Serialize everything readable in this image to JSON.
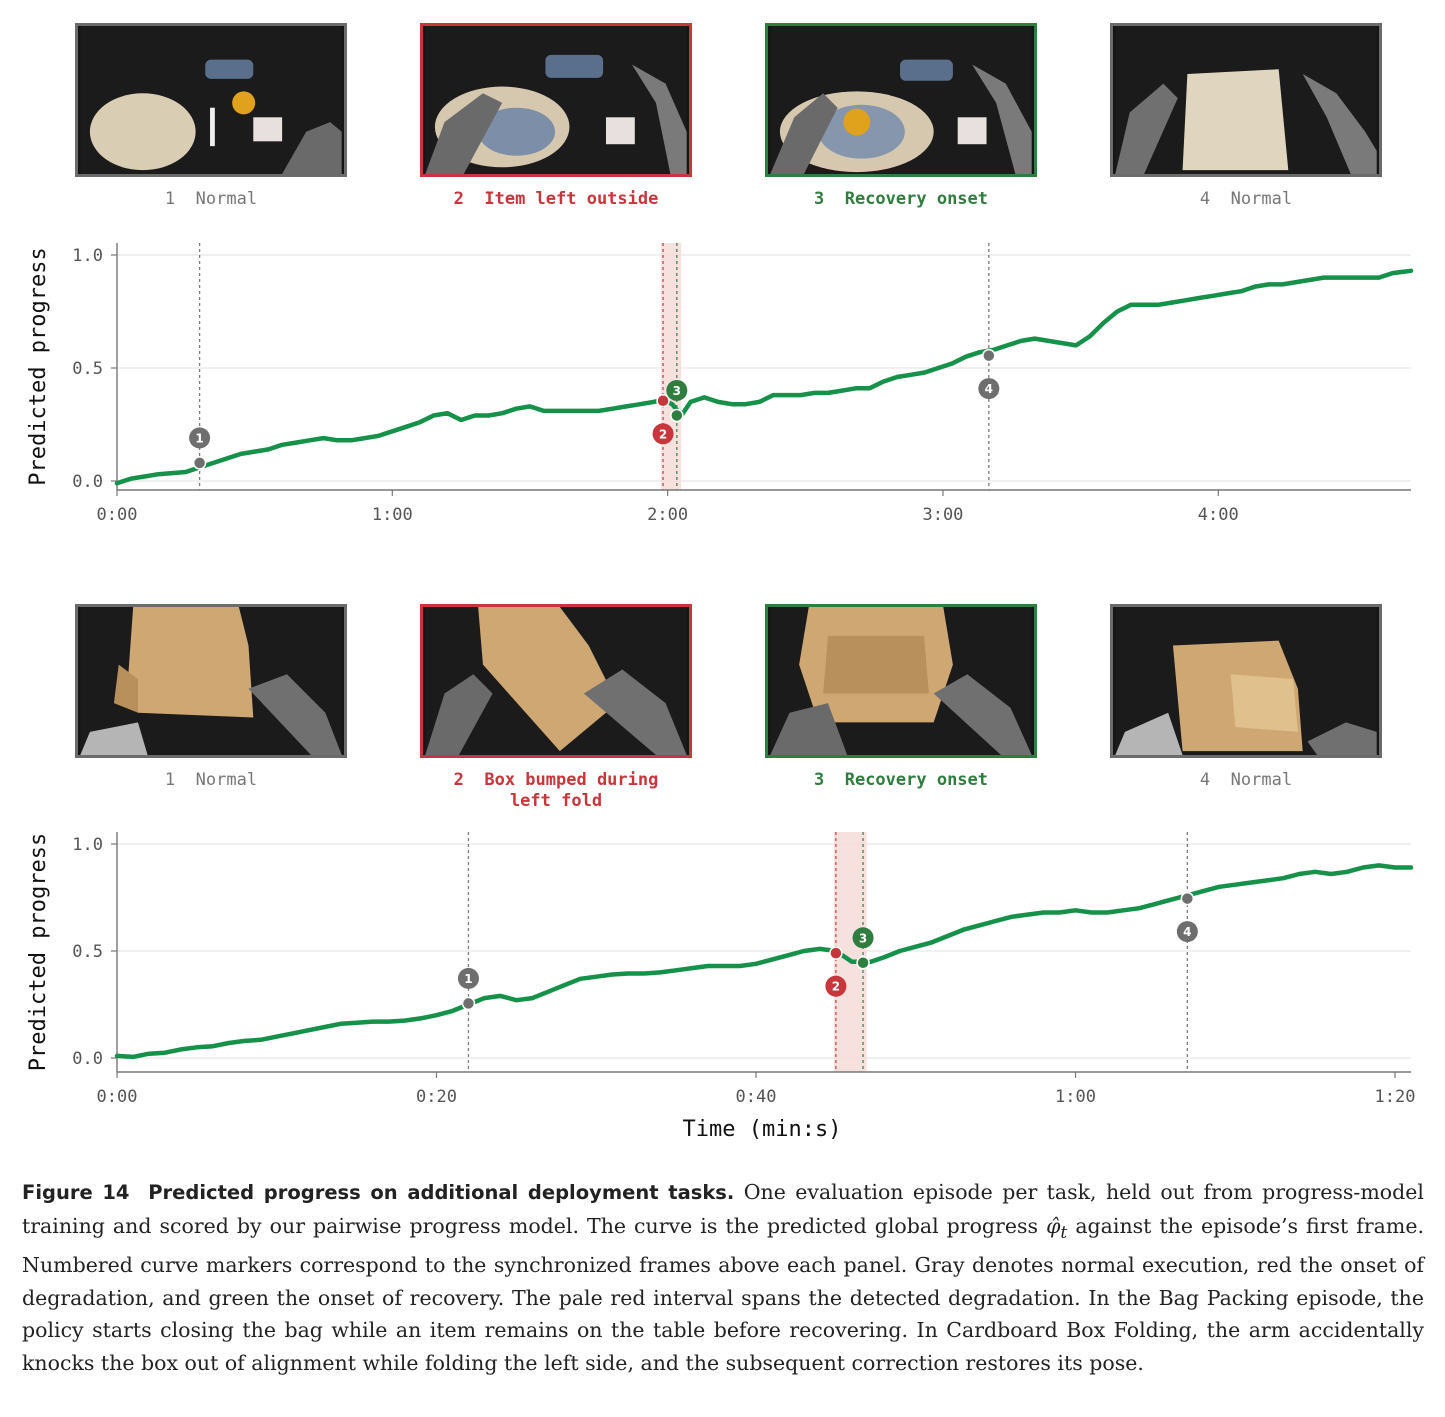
{
  "panels": [
    {
      "task": "Bag Packing",
      "frames": [
        {
          "num": "1",
          "label": "Normal",
          "kind": "normal"
        },
        {
          "num": "2",
          "label": "Item left outside",
          "kind": "degradation"
        },
        {
          "num": "3",
          "label": "Recovery onset",
          "kind": "recovery"
        },
        {
          "num": "4",
          "label": "Normal",
          "kind": "normal"
        }
      ]
    },
    {
      "task": "Cardboard Box Folding",
      "frames": [
        {
          "num": "1",
          "label": "Normal",
          "kind": "normal"
        },
        {
          "num": "2",
          "label": "Box bumped during\nleft fold",
          "kind": "degradation"
        },
        {
          "num": "3",
          "label": "Recovery onset",
          "kind": "recovery"
        },
        {
          "num": "4",
          "label": "Normal",
          "kind": "normal"
        }
      ]
    }
  ],
  "colors": {
    "curve": "#16914a",
    "normal": "#6e6e6e",
    "degradation": "#c8363b",
    "recovery": "#2f7d3f",
    "interval": "#f4dcd8"
  },
  "chart_data": [
    {
      "type": "line",
      "ylabel": "Predicted progress",
      "xlabel": "",
      "ylim": [
        0.0,
        1.0
      ],
      "yticks": [
        "0.0",
        "0.5",
        "1.0"
      ],
      "xticks": [
        "0:00",
        "1:00",
        "2:00",
        "3:00",
        "4:00"
      ],
      "xtick_values_s": [
        0,
        60,
        120,
        180,
        240
      ],
      "xlim_s": [
        0,
        282
      ],
      "grid": "horizontal",
      "series": [
        {
          "x_s": [
            0,
            3,
            6,
            9,
            12,
            15,
            18,
            21,
            24,
            27,
            30,
            33,
            36,
            39,
            42,
            45,
            48,
            51,
            54,
            57,
            60,
            63,
            66,
            69,
            72,
            75,
            78,
            81,
            84,
            87,
            90,
            93,
            96,
            99,
            102,
            105,
            108,
            111,
            114,
            117,
            119,
            121,
            123,
            125,
            128,
            131,
            134,
            137,
            140,
            143,
            146,
            149,
            152,
            155,
            158,
            161,
            164,
            167,
            170,
            173,
            176,
            179,
            182,
            185,
            188,
            191,
            194,
            197,
            200,
            203,
            206,
            209,
            212,
            215,
            218,
            221,
            224,
            227,
            230,
            233,
            236,
            239,
            242,
            245,
            248,
            251,
            254,
            257,
            260,
            263,
            266,
            269,
            272,
            275,
            278,
            282
          ],
          "y": [
            -0.01,
            0.01,
            0.02,
            0.03,
            0.035,
            0.04,
            0.06,
            0.08,
            0.1,
            0.12,
            0.13,
            0.14,
            0.16,
            0.17,
            0.18,
            0.19,
            0.18,
            0.18,
            0.19,
            0.2,
            0.22,
            0.24,
            0.26,
            0.29,
            0.3,
            0.27,
            0.29,
            0.29,
            0.3,
            0.32,
            0.33,
            0.31,
            0.31,
            0.31,
            0.31,
            0.31,
            0.32,
            0.33,
            0.34,
            0.35,
            0.36,
            0.34,
            0.29,
            0.35,
            0.37,
            0.35,
            0.34,
            0.34,
            0.35,
            0.38,
            0.38,
            0.38,
            0.39,
            0.39,
            0.4,
            0.41,
            0.41,
            0.44,
            0.46,
            0.47,
            0.48,
            0.5,
            0.52,
            0.55,
            0.57,
            0.58,
            0.6,
            0.62,
            0.63,
            0.62,
            0.61,
            0.6,
            0.64,
            0.7,
            0.75,
            0.78,
            0.78,
            0.78,
            0.79,
            0.8,
            0.81,
            0.82,
            0.83,
            0.84,
            0.86,
            0.87,
            0.87,
            0.88,
            0.89,
            0.9,
            0.9,
            0.9,
            0.9,
            0.9,
            0.92,
            0.93
          ]
        }
      ],
      "markers": [
        {
          "num": "1",
          "x_s": 18,
          "y": 0.08,
          "kind": "normal"
        },
        {
          "num": "2",
          "x_s": 119,
          "y": 0.355,
          "kind": "degradation"
        },
        {
          "num": "3",
          "x_s": 122,
          "y": 0.29,
          "kind": "recovery"
        },
        {
          "num": "4",
          "x_s": 190,
          "y": 0.555,
          "kind": "normal"
        }
      ],
      "interval_s": [
        119,
        122.5
      ],
      "vlines_s": [
        18,
        119,
        122,
        190
      ]
    },
    {
      "type": "line",
      "ylabel": "Predicted progress",
      "xlabel": "Time (min:s)",
      "ylim": [
        0.0,
        1.0
      ],
      "yticks": [
        "0.0",
        "0.5",
        "1.0"
      ],
      "xticks": [
        "0:00",
        "0:20",
        "0:40",
        "1:00",
        "1:20"
      ],
      "xtick_values_s": [
        0,
        20,
        40,
        60,
        80
      ],
      "xlim_s": [
        0,
        81
      ],
      "grid": "horizontal",
      "series": [
        {
          "x_s": [
            0,
            1,
            2,
            3,
            4,
            5,
            6,
            7,
            8,
            9,
            10,
            11,
            12,
            13,
            14,
            15,
            16,
            17,
            18,
            19,
            20,
            21,
            22,
            23,
            24,
            25,
            26,
            27,
            28,
            29,
            30,
            31,
            32,
            33,
            34,
            35,
            36,
            37,
            38,
            39,
            40,
            41,
            42,
            43,
            44,
            45,
            46,
            46.7,
            47,
            48,
            49,
            50,
            51,
            52,
            53,
            54,
            55,
            56,
            57,
            58,
            59,
            60,
            61,
            62,
            63,
            64,
            65,
            66,
            67,
            68,
            69,
            70,
            71,
            72,
            73,
            74,
            75,
            76,
            77,
            78,
            79,
            80,
            81
          ],
          "y": [
            0.01,
            0.005,
            0.02,
            0.025,
            0.04,
            0.05,
            0.055,
            0.07,
            0.08,
            0.085,
            0.1,
            0.115,
            0.13,
            0.145,
            0.16,
            0.165,
            0.17,
            0.17,
            0.175,
            0.185,
            0.2,
            0.22,
            0.25,
            0.28,
            0.29,
            0.27,
            0.28,
            0.31,
            0.34,
            0.37,
            0.38,
            0.39,
            0.395,
            0.395,
            0.4,
            0.41,
            0.42,
            0.43,
            0.43,
            0.43,
            0.44,
            0.46,
            0.48,
            0.5,
            0.51,
            0.5,
            0.45,
            0.45,
            0.445,
            0.47,
            0.5,
            0.52,
            0.54,
            0.57,
            0.6,
            0.62,
            0.64,
            0.66,
            0.67,
            0.68,
            0.68,
            0.69,
            0.68,
            0.68,
            0.69,
            0.7,
            0.72,
            0.74,
            0.76,
            0.78,
            0.8,
            0.81,
            0.82,
            0.83,
            0.84,
            0.86,
            0.87,
            0.86,
            0.87,
            0.89,
            0.9,
            0.89,
            0.89
          ]
        }
      ],
      "markers": [
        {
          "num": "1",
          "x_s": 22,
          "y": 0.255,
          "kind": "normal"
        },
        {
          "num": "2",
          "x_s": 45,
          "y": 0.49,
          "kind": "degradation"
        },
        {
          "num": "3",
          "x_s": 46.7,
          "y": 0.445,
          "kind": "recovery"
        },
        {
          "num": "4",
          "x_s": 67,
          "y": 0.745,
          "kind": "normal"
        }
      ],
      "interval_s": [
        45,
        46.8
      ],
      "vlines_s": [
        22,
        45,
        46.7,
        67
      ]
    }
  ],
  "caption": {
    "label": "Figure 14",
    "title": "Predicted progress on additional deployment tasks.",
    "text_before_symbol": "One evaluation episode per task, held out from progress-model training and scored by our pairwise progress model. The curve is the predicted global progress",
    "symbol": "φ̂",
    "symbol_sub": "t",
    "text_after_symbol": "against the episode’s first frame. Numbered curve markers correspond to the synchronized frames above each panel. Gray denotes normal execution, red the onset of degradation, and green the onset of recovery. The pale red interval spans the detected degradation. In the Bag Packing episode, the policy starts closing the bag while an item remains on the table before recovering. In Cardboard Box Folding, the arm accidentally knocks the box out of alignment while folding the left side, and the subsequent correction restores its pose."
  }
}
